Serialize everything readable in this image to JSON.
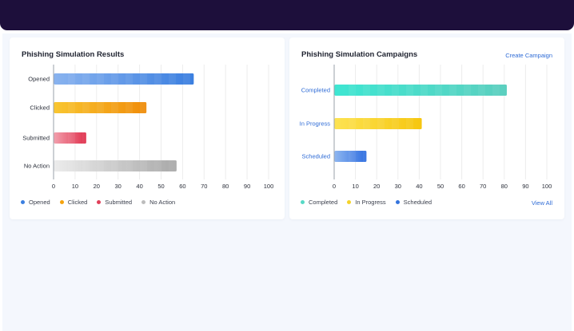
{
  "colors": {
    "opened": "#3b7fe0",
    "clicked": "#f5a30d",
    "submitted": "#e0405a",
    "no_action": "#c5c5c5",
    "completed": "#3edcc9",
    "in_progress": "#f8d523",
    "scheduled": "#3574dd"
  },
  "results_card": {
    "title": "Phishing Simulation Results",
    "legend": [
      {
        "label": "Opened",
        "color": "#3b7fe0",
        "icon": "dot-icon"
      },
      {
        "label": "Clicked",
        "color": "#f5a30d",
        "icon": "dot-icon"
      },
      {
        "label": "Submitted",
        "color": "#e0405a",
        "icon": "dot-icon"
      },
      {
        "label": "No Action",
        "color": "#bdbdbd",
        "icon": "dot-icon"
      }
    ]
  },
  "campaigns_card": {
    "title": "Phishing Simulation Campaigns",
    "create_link": "Create Campaign",
    "view_all": "View All",
    "legend": [
      {
        "label": "Completed",
        "color": "#57d9c6",
        "icon": "dot-icon"
      },
      {
        "label": "In Progress",
        "color": "#f5d32a",
        "icon": "dot-icon"
      },
      {
        "label": "Scheduled",
        "color": "#3574dd",
        "icon": "dot-icon"
      }
    ]
  },
  "chart_data": [
    {
      "type": "bar",
      "orientation": "horizontal",
      "title": "Phishing Simulation Results",
      "categories": [
        "Opened",
        "Clicked",
        "Submitted",
        "No Action"
      ],
      "values": [
        65,
        43,
        15,
        57
      ],
      "colors": [
        [
          "#89b3ef",
          "#3b7fe0"
        ],
        [
          "#f9c630",
          "#f08c0a"
        ],
        [
          "#f2a0ad",
          "#e0304c"
        ],
        [
          "#ececec",
          "#a9a9a9"
        ]
      ],
      "xlim": [
        0,
        100
      ],
      "xticks": [
        0,
        10,
        20,
        30,
        40,
        50,
        60,
        70,
        80,
        90,
        100
      ],
      "grid": true,
      "legend_position": "bottom"
    },
    {
      "type": "bar",
      "orientation": "horizontal",
      "title": "Phishing Simulation Campaigns",
      "categories": [
        "Completed",
        "In Progress",
        "Scheduled"
      ],
      "values": [
        81,
        41,
        15
      ],
      "colors": [
        [
          "#3ee6d2",
          "#5ccfbf"
        ],
        [
          "#fde352",
          "#f6c60f"
        ],
        [
          "#8eb6f0",
          "#2f6ee0"
        ]
      ],
      "category_label_color": "#2e6bd6",
      "xlim": [
        0,
        100
      ],
      "xticks": [
        0,
        10,
        20,
        30,
        40,
        50,
        60,
        70,
        80,
        90,
        100
      ],
      "grid": true,
      "legend_position": "bottom"
    }
  ]
}
